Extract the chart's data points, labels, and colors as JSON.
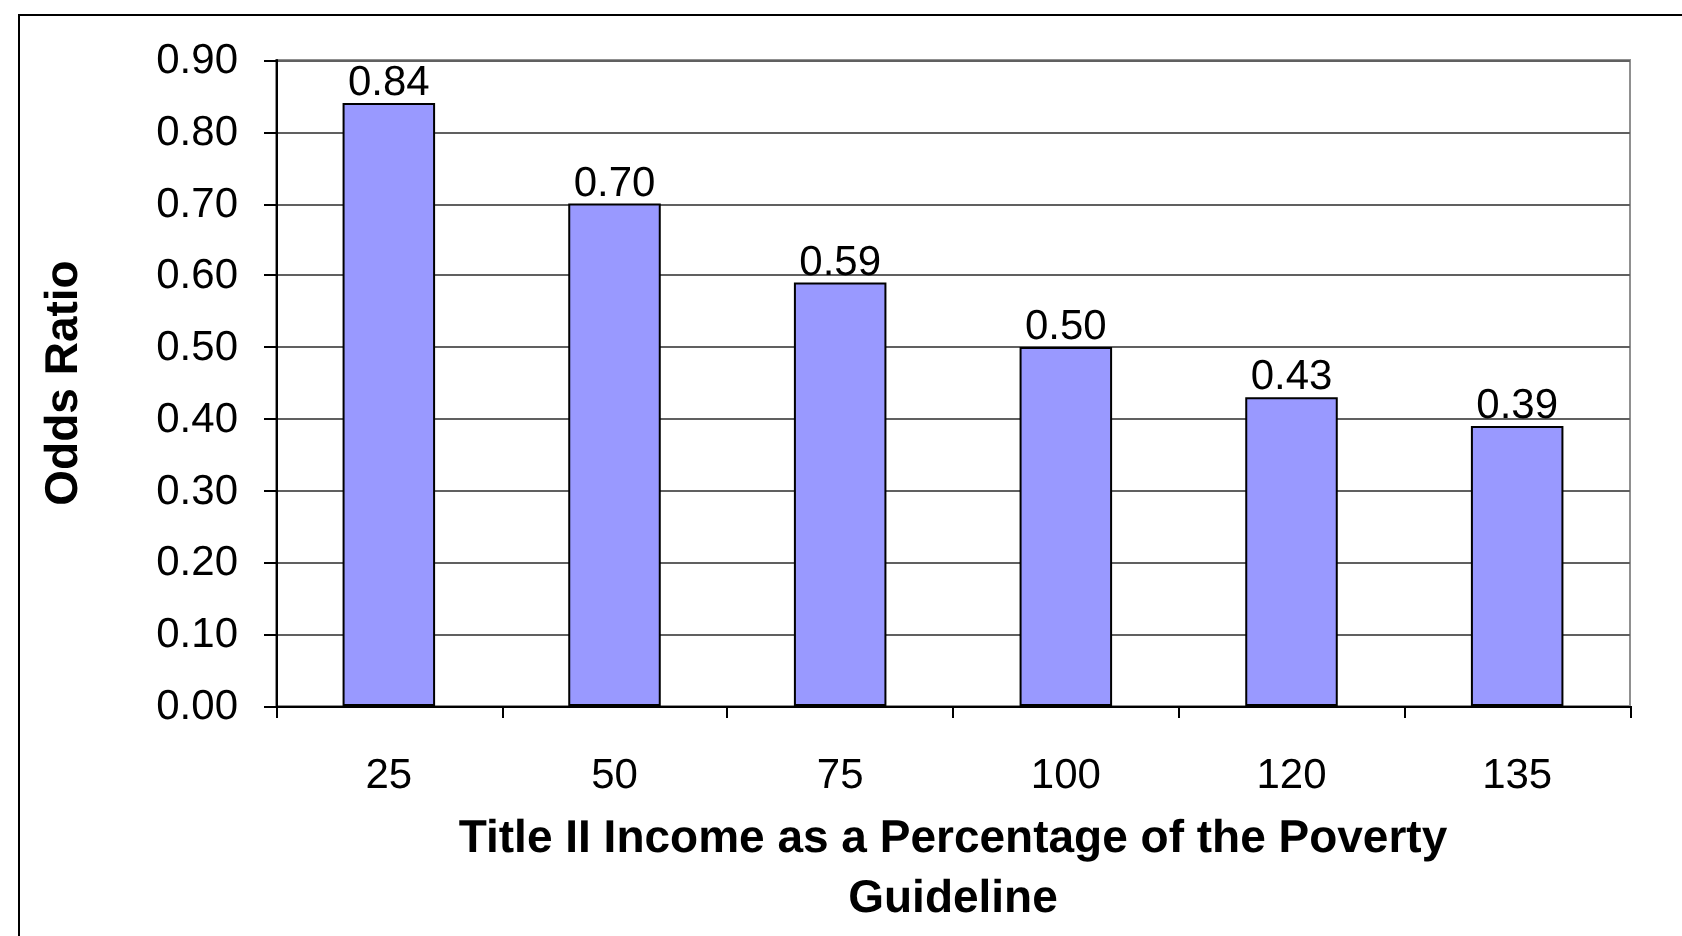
{
  "chart_data": {
    "type": "bar",
    "xlabel": "Title II Income as a Percentage of the Poverty Guideline",
    "ylabel": "Odds Ratio",
    "categories": [
      "25",
      "50",
      "75",
      "100",
      "120",
      "135"
    ],
    "values": [
      0.84,
      0.7,
      0.59,
      0.5,
      0.43,
      0.39
    ],
    "color": "#9999ff",
    "value_labels": [
      "0.84",
      "0.70",
      "0.59",
      "0.50",
      "0.43",
      "0.39"
    ],
    "ylim": [
      0,
      0.9
    ],
    "yticks": [
      {
        "value": 0,
        "label": "0.00"
      },
      {
        "value": 0.1,
        "label": "0.10"
      },
      {
        "value": 0.2,
        "label": "0.20"
      },
      {
        "value": 0.3,
        "label": "0.30"
      },
      {
        "value": 0.4,
        "label": "0.40"
      },
      {
        "value": 0.5,
        "label": "0.50"
      },
      {
        "value": 0.6,
        "label": "0.60"
      },
      {
        "value": 0.7,
        "label": "0.70"
      },
      {
        "value": 0.8,
        "label": "0.80"
      },
      {
        "value": 0.9,
        "label": "0.90"
      }
    ],
    "grid": "y"
  }
}
